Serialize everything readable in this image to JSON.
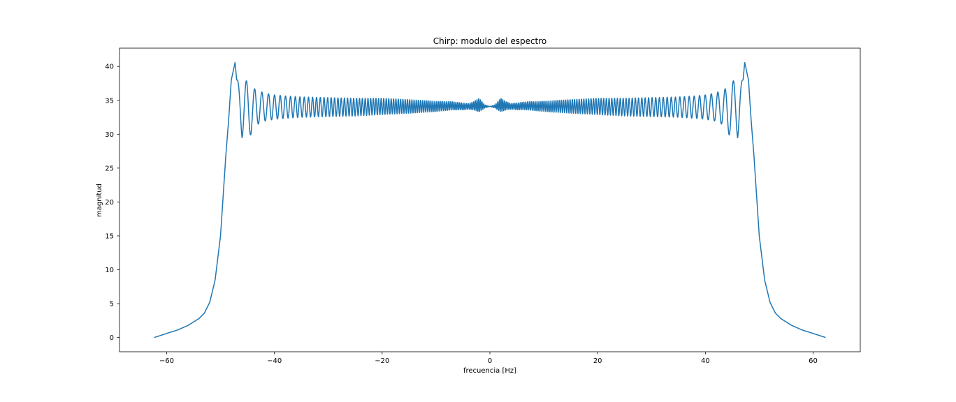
{
  "chart_data": {
    "type": "line",
    "title": "Chirp: modulo del espectro",
    "xlabel": "frecuencia [Hz]",
    "ylabel": "magnitud",
    "xlim": [
      -68.75,
      68.75
    ],
    "ylim": [
      -2.1,
      42.7
    ],
    "xticks": [
      -60,
      -40,
      -20,
      0,
      20,
      40,
      60
    ],
    "xtick_labels": [
      "−60",
      "−40",
      "−20",
      "0",
      "20",
      "40",
      "60"
    ],
    "yticks": [
      0,
      5,
      10,
      15,
      20,
      25,
      30,
      35,
      40
    ],
    "ytick_labels": [
      "0",
      "5",
      "10",
      "15",
      "20",
      "25",
      "30",
      "35",
      "40"
    ],
    "grid": false,
    "legend": "none",
    "colors": {
      "line": "#1f77b4",
      "axes": "#000000",
      "background": "#ffffff"
    },
    "series": [
      {
        "symmetric": "even",
        "x": [
          0,
          1,
          2,
          3,
          4,
          5,
          7,
          10,
          15,
          20,
          25,
          30,
          35,
          38,
          40,
          42,
          43,
          44,
          45,
          46,
          47,
          47.3,
          48,
          48.5,
          49,
          49.5,
          50,
          51,
          52,
          53,
          54,
          56,
          58,
          60,
          62.3
        ],
        "y": [
          34.1,
          34.1,
          34.3,
          34.2,
          34.1,
          34.1,
          34.2,
          34.1,
          34.1,
          34.1,
          34.0,
          34.0,
          34.0,
          34.0,
          34.0,
          34.0,
          34.0,
          33.6,
          33.5,
          33.8,
          38.0,
          40.6,
          38.0,
          32.0,
          27.0,
          21.0,
          15.0,
          8.5,
          5.2,
          3.6,
          2.8,
          1.8,
          1.1,
          0.6,
          0.0
        ],
        "ripple_amplitude": [
          0.0,
          0.25,
          1.0,
          0.6,
          0.4,
          0.5,
          0.6,
          0.75,
          1.0,
          1.2,
          1.3,
          1.4,
          1.5,
          1.65,
          1.8,
          2.1,
          2.5,
          3.2,
          4.3,
          4.4,
          0.0,
          0.0,
          0.0,
          0.0,
          0.0,
          0.0,
          0.0,
          0.0,
          0.0,
          0.0,
          0.0,
          0.0,
          0.0,
          0.0,
          0.0
        ]
      }
    ]
  }
}
